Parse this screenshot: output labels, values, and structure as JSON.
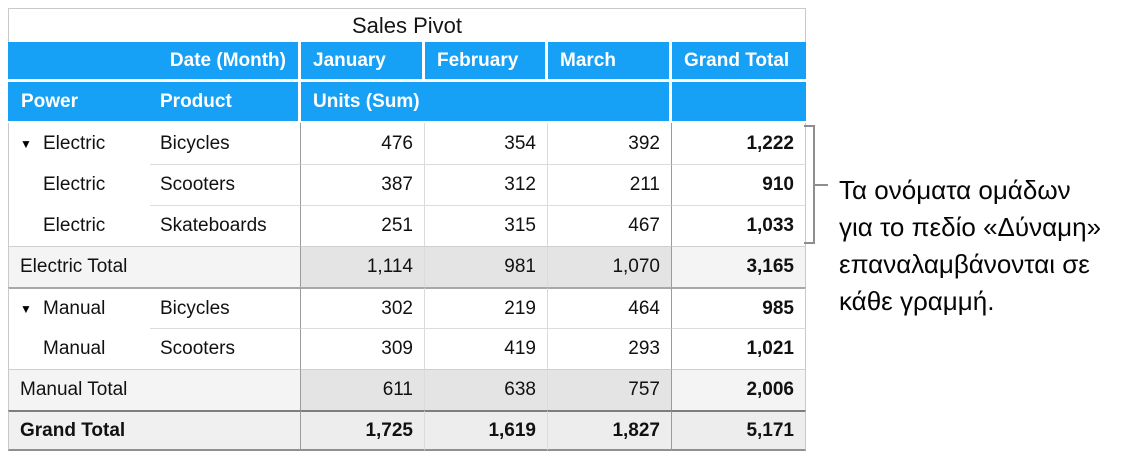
{
  "title": "Sales Pivot",
  "colors": {
    "header_blue": "#16a0f6",
    "subtotal_gray": "#e4e4e4",
    "subtotal_light_gray": "#f4f4f4",
    "grand_total_gray": "#ededed",
    "divider_dark": "#9b9b9b",
    "bracket_gray": "#8e8e8e"
  },
  "header": {
    "date_month": "Date (Month)",
    "january": "January",
    "february": "February",
    "march": "March",
    "grand_total": "Grand Total",
    "power": "Power",
    "product": "Product",
    "units_sum": "Units (Sum)"
  },
  "disclosure_icon": "▼",
  "rows": [
    {
      "power": "Electric",
      "product": "Bicycles",
      "jan": "476",
      "feb": "354",
      "mar": "392",
      "total": "1,222"
    },
    {
      "power": "Electric",
      "product": "Scooters",
      "jan": "387",
      "feb": "312",
      "mar": "211",
      "total": "910"
    },
    {
      "power": "Electric",
      "product": "Skateboards",
      "jan": "251",
      "feb": "315",
      "mar": "467",
      "total": "1,033"
    },
    {
      "label": "Electric Total",
      "jan": "1,114",
      "feb": "981",
      "mar": "1,070",
      "total": "3,165"
    },
    {
      "power": "Manual",
      "product": "Bicycles",
      "jan": "302",
      "feb": "219",
      "mar": "464",
      "total": "985"
    },
    {
      "power": "Manual",
      "product": "Scooters",
      "jan": "309",
      "feb": "419",
      "mar": "293",
      "total": "1,021"
    },
    {
      "label": "Manual Total",
      "jan": "611",
      "feb": "638",
      "mar": "757",
      "total": "2,006"
    },
    {
      "label": "Grand Total",
      "jan": "1,725",
      "feb": "1,619",
      "mar": "1,827",
      "total": "5,171"
    }
  ],
  "annotation": {
    "lines": [
      "Τα ονόματα ομάδων",
      "για το πεδίο «Δύναμη»",
      "επαναλαμβάνονται σε",
      "κάθε γραμμή."
    ]
  }
}
